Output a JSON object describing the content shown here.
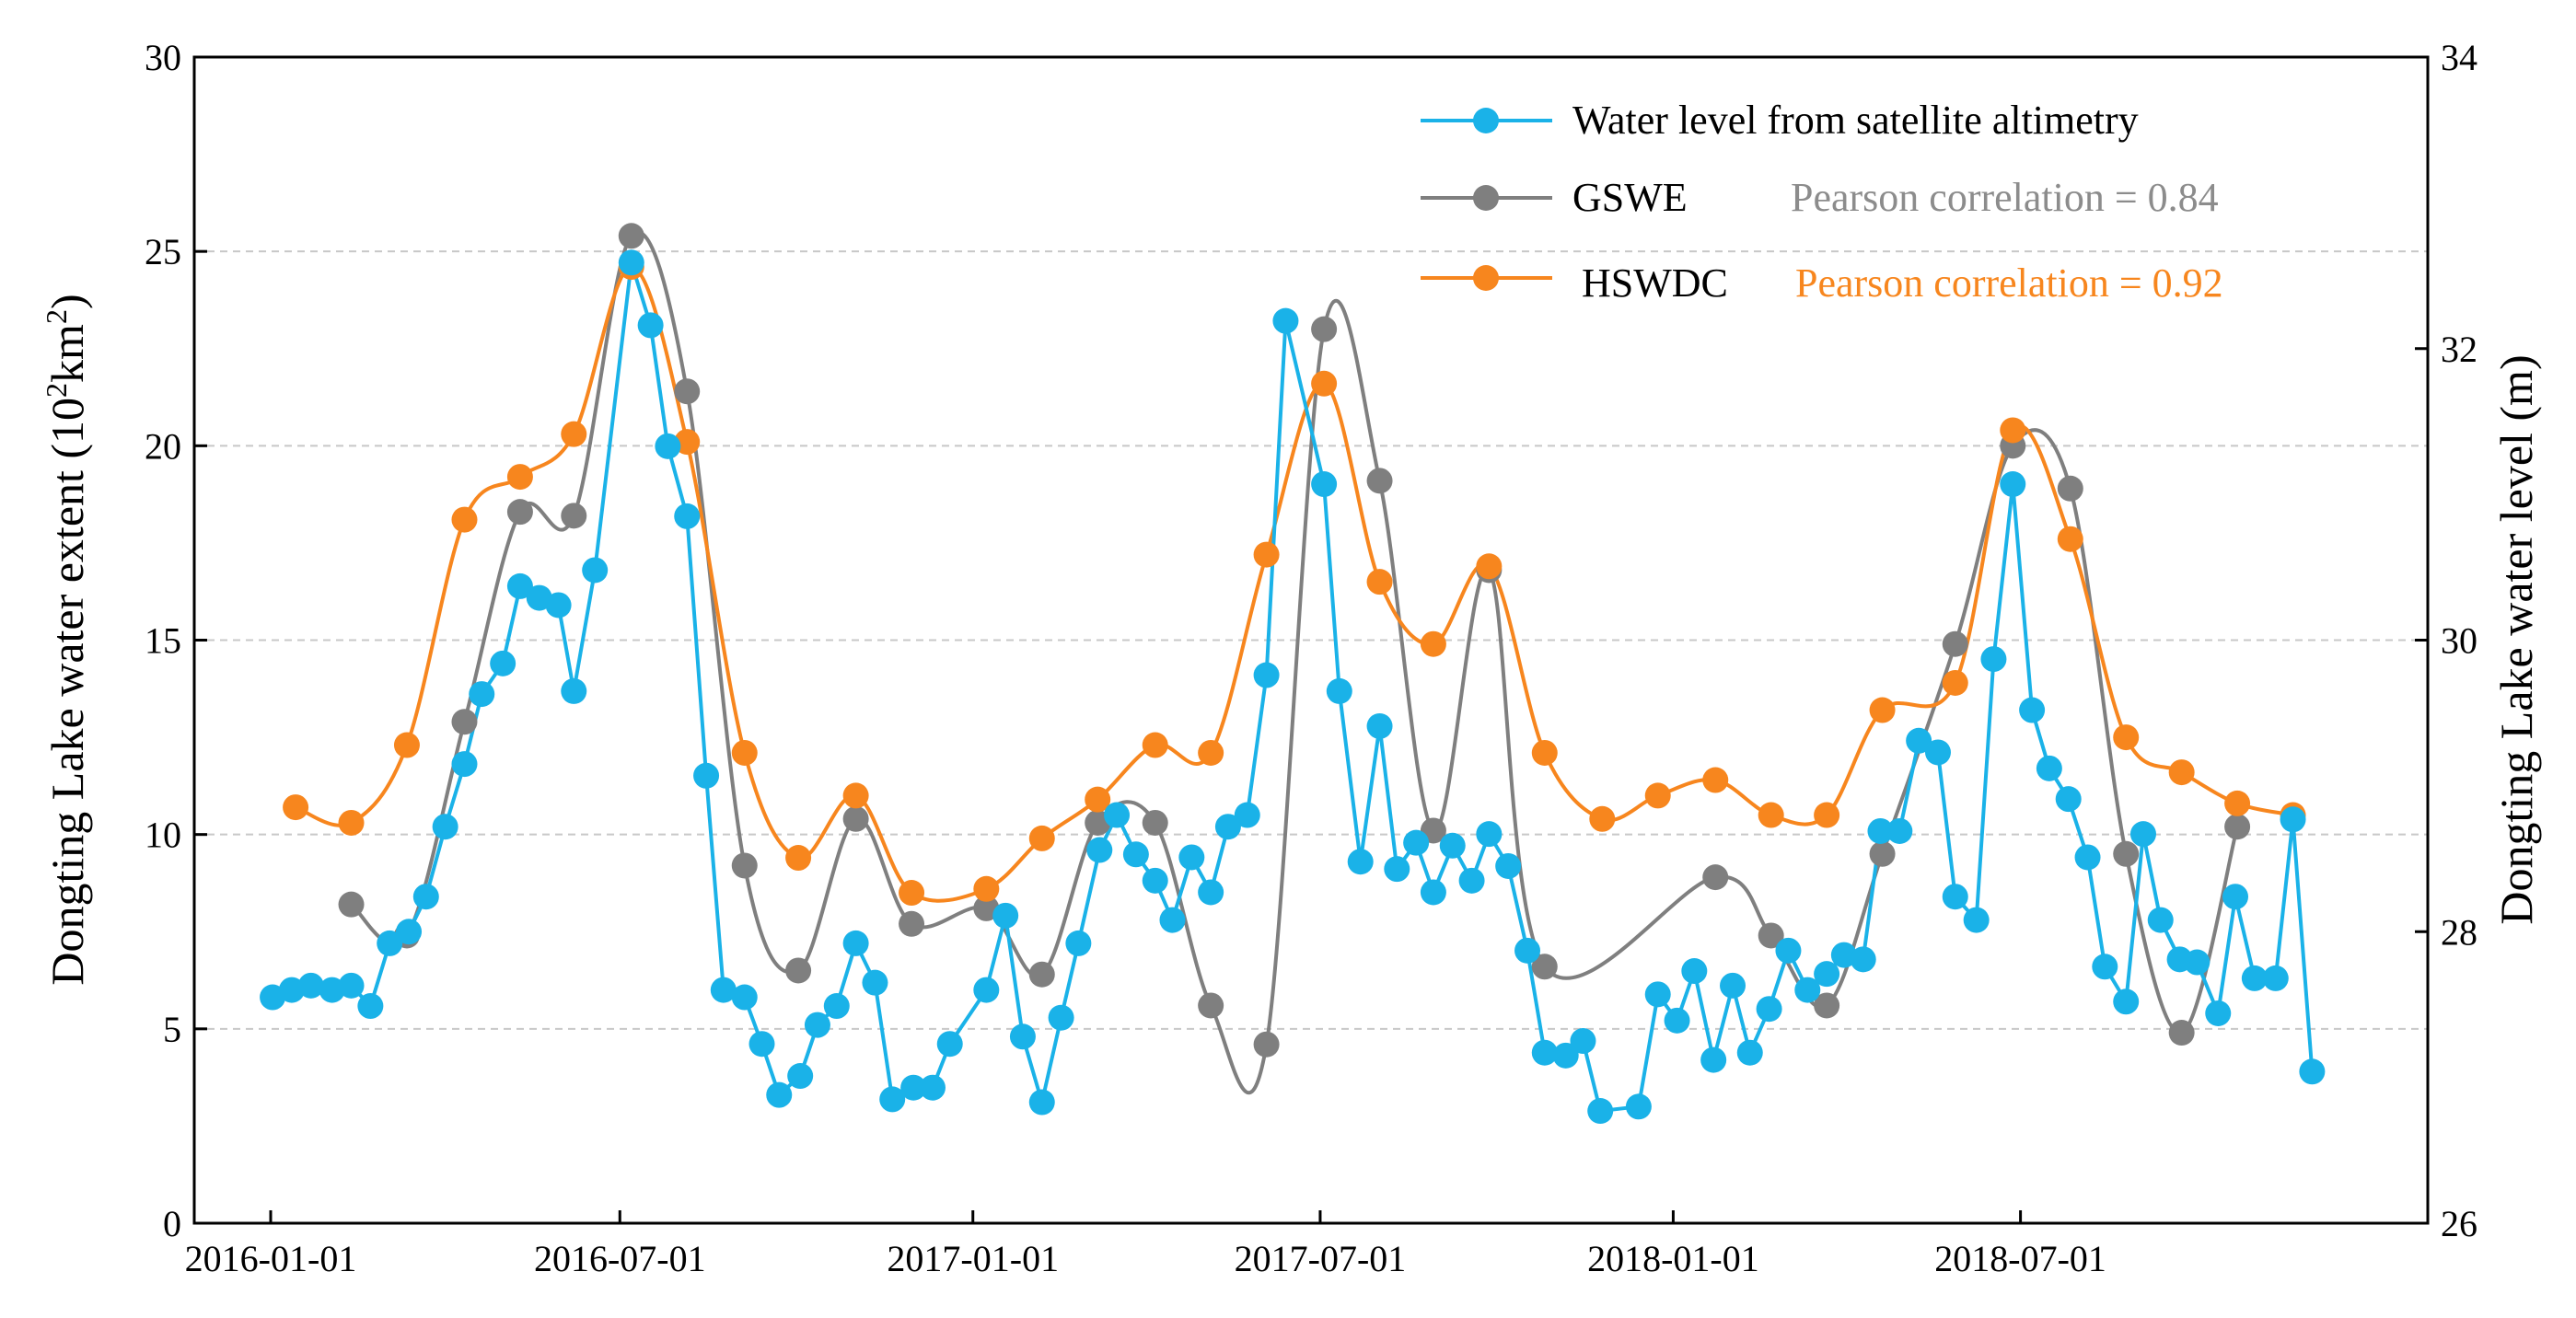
{
  "chart_data": {
    "type": "line",
    "x_unit": "days since 2016-01-01",
    "x_ticks": [
      {
        "day": 0,
        "label": "2016-01-01"
      },
      {
        "day": 182,
        "label": "2016-07-01"
      },
      {
        "day": 366,
        "label": "2017-01-01"
      },
      {
        "day": 547,
        "label": "2017-07-01"
      },
      {
        "day": 731,
        "label": "2018-01-01"
      },
      {
        "day": 912,
        "label": "2018-07-01"
      }
    ],
    "xlim": [
      -40,
      1125
    ],
    "y_left": {
      "label_main": "Dongting Lake water extent (10",
      "label_sup1": "2",
      "label_mid": "km",
      "label_sup2": "2",
      "label_end": ")",
      "lim": [
        0,
        30
      ],
      "ticks": [
        "0",
        "5",
        "10",
        "15",
        "20",
        "25",
        "30"
      ]
    },
    "y_right": {
      "label": "Dongting Lake water level (m)",
      "lim": [
        26,
        34
      ],
      "ticks": [
        "26",
        "28",
        "30",
        "32",
        "34"
      ]
    },
    "grid": "horizontal dashed",
    "legend_position": "top-right",
    "series": [
      {
        "name": "Water level from satellite altimetry",
        "axis": "right",
        "color": "#1ab2e8",
        "smooth": false,
        "x": [
          1,
          11,
          21,
          32,
          42,
          52,
          62,
          72,
          81,
          91,
          101,
          110,
          121,
          130,
          140,
          150,
          158,
          169,
          188,
          198,
          207,
          217,
          227,
          236,
          247,
          256,
          265,
          276,
          285,
          295,
          305,
          315,
          324,
          335,
          345,
          354,
          373,
          383,
          392,
          402,
          412,
          421,
          432,
          441,
          451,
          461,
          470,
          480,
          490,
          499,
          509,
          519,
          529,
          549,
          557,
          568,
          578,
          587,
          597,
          606,
          616,
          626,
          635,
          645,
          655,
          664,
          675,
          684,
          693,
          713,
          723,
          733,
          742,
          752,
          762,
          771,
          781,
          791,
          801,
          811,
          820,
          830,
          839,
          849,
          859,
          869,
          878,
          889,
          898,
          908,
          918,
          927,
          937,
          947,
          956,
          967,
          976,
          985,
          995,
          1004,
          1015,
          1024,
          1034,
          1045,
          1054,
          1064
        ],
        "y": [
          27.55,
          27.6,
          27.63,
          27.6,
          27.63,
          27.49,
          27.92,
          28.0,
          28.24,
          28.72,
          29.15,
          29.63,
          29.84,
          30.37,
          30.29,
          30.24,
          29.65,
          30.48,
          32.59,
          32.16,
          31.33,
          30.85,
          29.07,
          27.6,
          27.55,
          27.23,
          26.88,
          27.01,
          27.36,
          27.49,
          27.92,
          27.65,
          26.85,
          26.93,
          26.93,
          27.23,
          27.6,
          28.11,
          27.28,
          26.83,
          27.41,
          27.92,
          28.56,
          28.8,
          28.53,
          28.35,
          28.08,
          28.51,
          28.27,
          28.72,
          28.8,
          29.76,
          32.19,
          31.07,
          29.65,
          28.48,
          29.41,
          28.43,
          28.61,
          28.27,
          28.59,
          28.35,
          28.67,
          28.45,
          27.87,
          27.17,
          27.15,
          27.25,
          26.77,
          26.8,
          27.57,
          27.39,
          27.73,
          27.12,
          27.63,
          27.17,
          27.47,
          27.87,
          27.6,
          27.71,
          27.84,
          27.81,
          28.69,
          28.69,
          29.31,
          29.23,
          28.24,
          28.08,
          29.87,
          31.07,
          29.52,
          29.12,
          28.91,
          28.51,
          27.76,
          27.52,
          28.67,
          28.08,
          27.81,
          27.79,
          27.44,
          28.24,
          27.68,
          27.68,
          28.77,
          27.04
        ]
      },
      {
        "name": "GSWE",
        "annotation": "Pearson correlation = 0.84",
        "axis": "left",
        "color": "#7f7f7f",
        "smooth": true,
        "x": [
          42,
          71,
          101,
          130,
          158,
          188,
          217,
          247,
          275,
          305,
          334,
          373,
          402,
          431,
          461,
          490,
          519,
          549,
          578,
          606,
          635,
          664,
          753,
          782,
          811,
          840,
          878,
          908,
          938,
          967,
          996,
          1025
        ],
        "y": [
          8.2,
          7.4,
          12.9,
          18.3,
          18.2,
          25.4,
          21.4,
          9.2,
          6.5,
          10.4,
          7.7,
          8.1,
          6.4,
          10.3,
          10.3,
          5.6,
          4.6,
          23.0,
          19.1,
          10.1,
          16.8,
          6.6,
          8.9,
          7.4,
          5.6,
          9.5,
          14.9,
          20.0,
          18.9,
          9.5,
          4.9,
          10.2
        ]
      },
      {
        "name": "HSWDC",
        "annotation": "Pearson correlation = 0.92",
        "axis": "left",
        "color": "#f7861e",
        "smooth": true,
        "x": [
          13,
          42,
          71,
          101,
          130,
          158,
          188,
          217,
          247,
          275,
          305,
          334,
          373,
          402,
          431,
          461,
          490,
          519,
          549,
          578,
          606,
          635,
          664,
          694,
          723,
          753,
          782,
          811,
          840,
          878,
          908,
          938,
          967,
          996,
          1025,
          1054
        ],
        "y": [
          10.7,
          10.3,
          12.3,
          18.1,
          19.2,
          20.3,
          24.6,
          20.1,
          12.1,
          9.4,
          11.0,
          8.5,
          8.6,
          9.9,
          10.9,
          12.3,
          12.1,
          17.2,
          21.6,
          16.5,
          14.9,
          16.9,
          12.1,
          10.4,
          11.0,
          11.4,
          10.5,
          10.5,
          13.2,
          13.9,
          20.4,
          17.6,
          12.5,
          11.6,
          10.8,
          10.5
        ]
      }
    ]
  }
}
